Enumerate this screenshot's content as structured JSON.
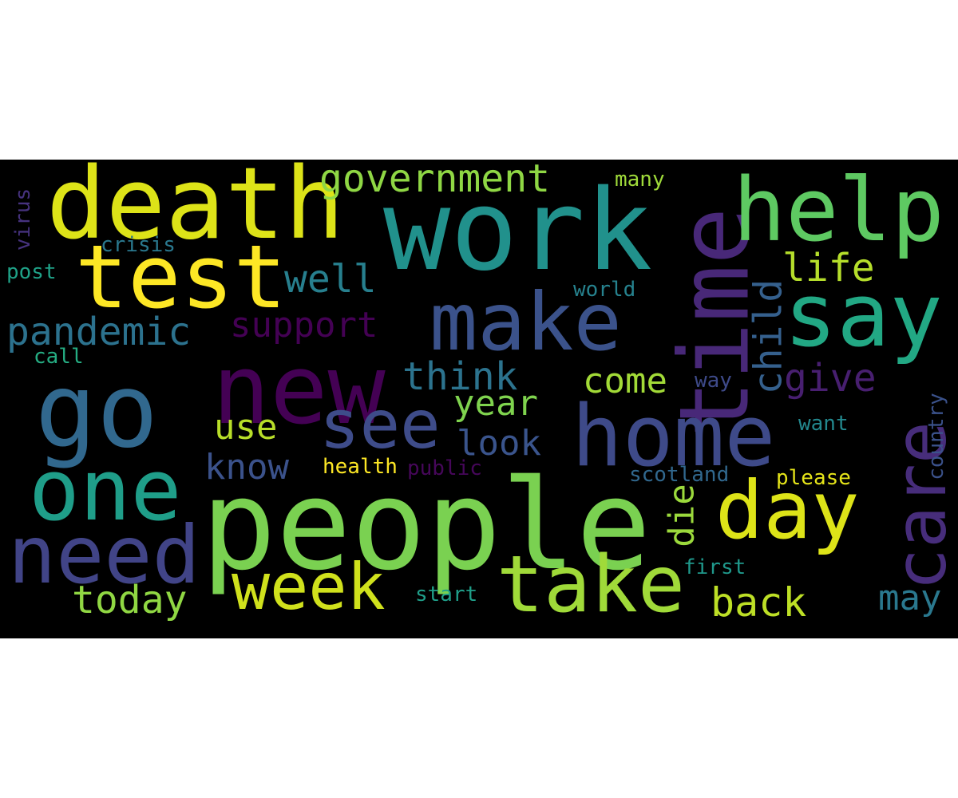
{
  "word_cloud": {
    "background": "#000000",
    "words": {
      "people": {
        "text": "people",
        "color": "#7ad151"
      },
      "work": {
        "text": "work",
        "color": "#21918c"
      },
      "death": {
        "text": "death",
        "color": "#dde318"
      },
      "new": {
        "text": "new",
        "color": "#440154"
      },
      "go": {
        "text": "go",
        "color": "#31688e"
      },
      "time": {
        "text": "time",
        "color": "#482878"
      },
      "help": {
        "text": "help",
        "color": "#5ec962"
      },
      "test": {
        "text": "test",
        "color": "#fde725"
      },
      "make": {
        "text": "make",
        "color": "#3b528b"
      },
      "home": {
        "text": "home",
        "color": "#3e4a89"
      },
      "say": {
        "text": "say",
        "color": "#22a884"
      },
      "one": {
        "text": "one",
        "color": "#1f9e89"
      },
      "day": {
        "text": "day",
        "color": "#dde318"
      },
      "need": {
        "text": "need",
        "color": "#414487"
      },
      "week": {
        "text": "week",
        "color": "#d0e11c"
      },
      "take": {
        "text": "take",
        "color": "#a0da39"
      },
      "care": {
        "text": "care",
        "color": "#472d7b"
      },
      "see": {
        "text": "see",
        "color": "#3e4c8a"
      },
      "government": {
        "text": "government",
        "color": "#8fd744"
      },
      "pandemic": {
        "text": "pandemic",
        "color": "#2c728e"
      },
      "support": {
        "text": "support",
        "color": "#440154"
      },
      "think": {
        "text": "think",
        "color": "#2c738e"
      },
      "come": {
        "text": "come",
        "color": "#a2da37"
      },
      "give": {
        "text": "give",
        "color": "#481f70"
      },
      "child": {
        "text": "child",
        "color": "#35608d"
      },
      "life": {
        "text": "life",
        "color": "#b5de2b"
      },
      "well": {
        "text": "well",
        "color": "#277f8e"
      },
      "year": {
        "text": "year",
        "color": "#7fd34e"
      },
      "look": {
        "text": "look",
        "color": "#3a548c"
      },
      "use": {
        "text": "use",
        "color": "#b8de29"
      },
      "know": {
        "text": "know",
        "color": "#3b528b"
      },
      "today": {
        "text": "today",
        "color": "#90d743"
      },
      "back": {
        "text": "back",
        "color": "#bddf26"
      },
      "may": {
        "text": "may",
        "color": "#2a788e"
      },
      "die": {
        "text": "die",
        "color": "#9bd93c"
      },
      "many": {
        "text": "many",
        "color": "#9fda3a"
      },
      "virus": {
        "text": "virus",
        "color": "#46327e"
      },
      "crisis": {
        "text": "crisis",
        "color": "#2a788e"
      },
      "post": {
        "text": "post",
        "color": "#1fa187"
      },
      "call": {
        "text": "call",
        "color": "#25ac82"
      },
      "world": {
        "text": "world",
        "color": "#26828e"
      },
      "way": {
        "text": "way",
        "color": "#3e4a89"
      },
      "want": {
        "text": "want",
        "color": "#23888e"
      },
      "country": {
        "text": "country",
        "color": "#3b528b"
      },
      "health": {
        "text": "health",
        "color": "#fde725"
      },
      "public": {
        "text": "public",
        "color": "#46075a"
      },
      "scotland": {
        "text": "scotland",
        "color": "#31688e"
      },
      "please": {
        "text": "please",
        "color": "#e5e419"
      },
      "first": {
        "text": "first",
        "color": "#1f988b"
      },
      "start": {
        "text": "start",
        "color": "#1f9e89"
      }
    }
  }
}
